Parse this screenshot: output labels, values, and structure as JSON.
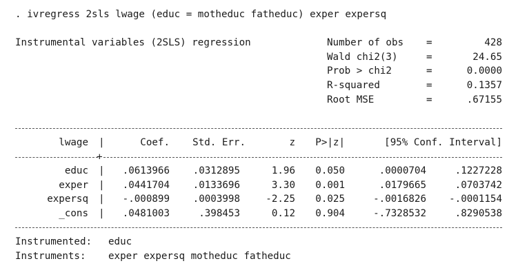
{
  "command": ". ivregress 2sls lwage (educ = motheduc fatheduc) exper expersq",
  "title": "Instrumental variables (2SLS) regression",
  "stats": [
    {
      "label": "Number of obs",
      "eq": "=",
      "value": "428"
    },
    {
      "label": "Wald chi2(3)",
      "eq": "=",
      "value": "24.65"
    },
    {
      "label": "Prob > chi2",
      "eq": "=",
      "value": "0.0000"
    },
    {
      "label": "R-squared",
      "eq": "=",
      "value": "0.1357"
    },
    {
      "label": "Root MSE",
      "eq": "=",
      "value": ".67155"
    }
  ],
  "table": {
    "depvar": "lwage",
    "sep": "|",
    "headers": {
      "coef": "Coef.",
      "se": "Std. Err.",
      "z": "z",
      "p": "P>|z|",
      "ci": "[95% Conf. Interval]"
    },
    "rows": [
      {
        "var": "educ",
        "coef": ".0613966",
        "se": ".0312895",
        "z": "1.96",
        "p": "0.050",
        "lo": ".0000704",
        "hi": ".1227228"
      },
      {
        "var": "exper",
        "coef": ".0441704",
        "se": ".0133696",
        "z": "3.30",
        "p": "0.001",
        "lo": ".0179665",
        "hi": ".0703742"
      },
      {
        "var": "expersq",
        "coef": "-.000899",
        "se": ".0003998",
        "z": "-2.25",
        "p": "0.025",
        "lo": "-.0016826",
        "hi": "-.0001154"
      },
      {
        "var": "_cons",
        "coef": ".0481003",
        "se": ".398453",
        "z": "0.12",
        "p": "0.904",
        "lo": "-.7328532",
        "hi": ".8290538"
      }
    ]
  },
  "footer": {
    "instrumented_label": "Instrumented:",
    "instrumented_value": "educ",
    "instruments_label": "Instruments:",
    "instruments_value": "exper expersq motheduc fatheduc"
  }
}
